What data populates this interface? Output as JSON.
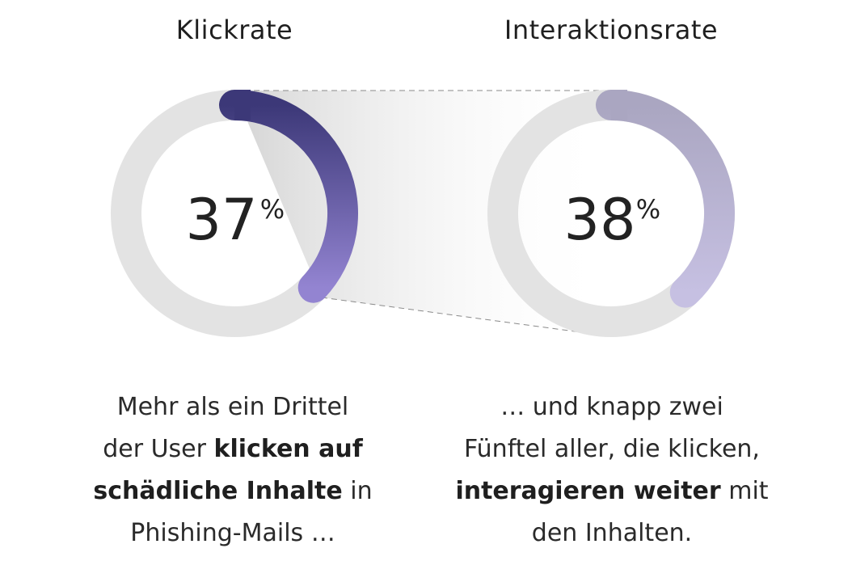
{
  "chart_data": [
    {
      "type": "donut",
      "title": "Klickrate",
      "value": 37,
      "value_text": "37",
      "unit": "%",
      "max": 100,
      "colors": {
        "track": "#e3e3e3",
        "arc_start": "#3c3878",
        "arc_end": "#9384d1"
      }
    },
    {
      "type": "donut",
      "title": "Interaktionsrate",
      "value": 38,
      "value_text": "38",
      "unit": "%",
      "max": 100,
      "colors": {
        "track": "#e3e3e3",
        "arc_start": "#aaa6c1",
        "arc_end": "#c6c0e2"
      }
    }
  ],
  "captions": {
    "left": {
      "line1": "Mehr als ein Drittel",
      "line2_pre": "der User ",
      "line2_bold": "klicken auf",
      "line3_bold": "schädliche Inhalte",
      "line3_post": " in",
      "line4": "Phishing-Mails …"
    },
    "right": {
      "line1": "… und knapp zwei",
      "line2": "Fünftel aller, die klicken,",
      "line3_bold": "interagieren weiter",
      "line3_post": " mit",
      "line4": "den Inhalten."
    }
  },
  "colors": {
    "text": "#222222",
    "connector_shade": "#d9d9d9",
    "connector_line": "#8a8a8a"
  }
}
